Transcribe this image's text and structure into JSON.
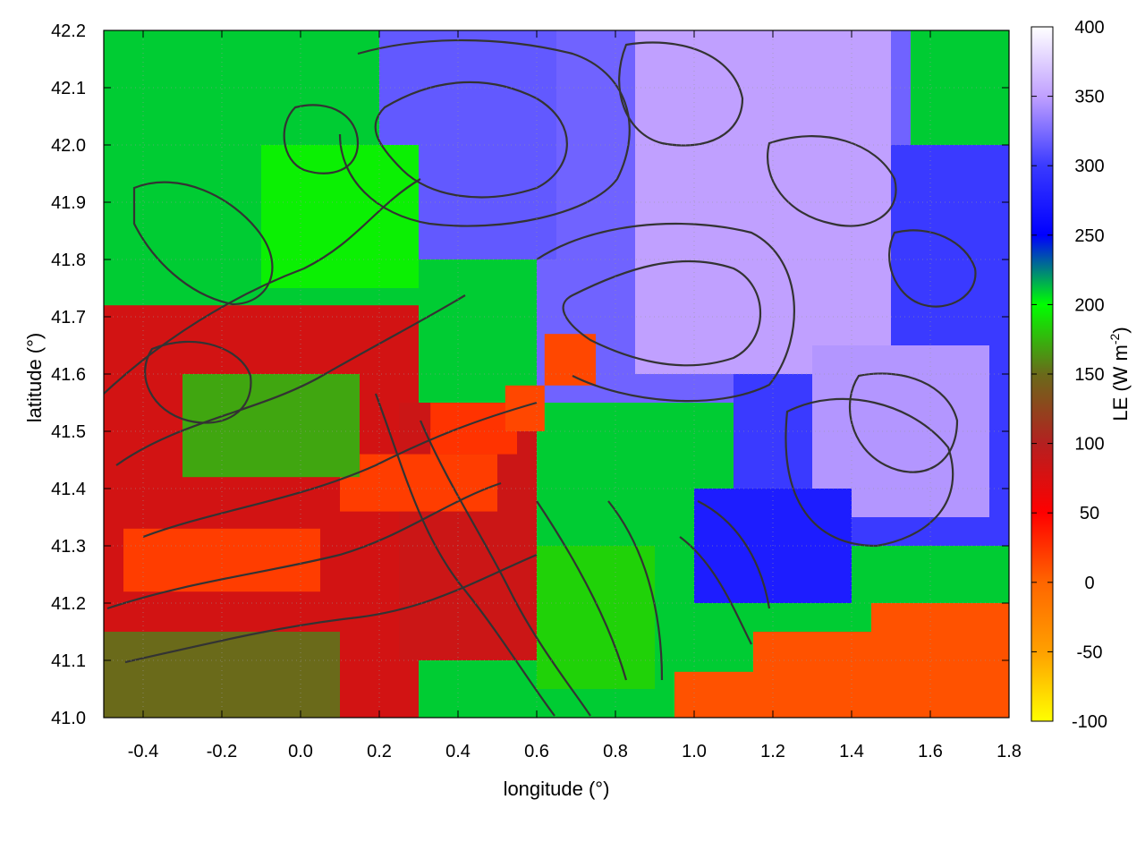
{
  "chart_data": {
    "type": "heatmap",
    "title": "",
    "xlabel": "longitude (°)",
    "ylabel": "latitude (°)",
    "colorbar_label": "LE (W m-2)",
    "colorbar_label_main": "LE (W m",
    "colorbar_label_sup": "-2",
    "colorbar_label_end": ")",
    "xlim": [
      -0.5,
      1.8
    ],
    "ylim": [
      41.0,
      42.2
    ],
    "clim": [
      -100,
      400
    ],
    "x_ticks": [
      -0.4,
      -0.2,
      0.0,
      0.2,
      0.4,
      0.6,
      0.8,
      1.0,
      1.2,
      1.4,
      1.6,
      1.8
    ],
    "x_tick_labels": [
      "-0.4",
      "-0.2",
      "0.0",
      "0.2",
      "0.4",
      "0.6",
      "0.8",
      "1.0",
      "1.2",
      "1.4",
      "1.6",
      "1.8"
    ],
    "y_ticks": [
      41.0,
      41.1,
      41.2,
      41.3,
      41.4,
      41.5,
      41.6,
      41.7,
      41.8,
      41.9,
      42.0,
      42.1,
      42.2
    ],
    "y_tick_labels": [
      "41.0",
      "41.1",
      "41.2",
      "41.3",
      "41.4",
      "41.5",
      "41.6",
      "41.7",
      "41.8",
      "41.9",
      "42.0",
      "42.1",
      "42.2"
    ],
    "colorbar_ticks": [
      -100,
      -50,
      0,
      50,
      100,
      150,
      200,
      250,
      300,
      350,
      400
    ],
    "colorbar_tick_labels": [
      "-100",
      "-50",
      "0",
      "50",
      "100",
      "150",
      "200",
      "250",
      "300",
      "350",
      "400"
    ],
    "colormap": [
      {
        "value": -100,
        "color": "#ffff00"
      },
      {
        "value": -50,
        "color": "#ffa000"
      },
      {
        "value": 0,
        "color": "#ff6600"
      },
      {
        "value": 50,
        "color": "#ff0000"
      },
      {
        "value": 100,
        "color": "#b42020"
      },
      {
        "value": 150,
        "color": "#6a6a1a"
      },
      {
        "value": 200,
        "color": "#00ff00"
      },
      {
        "value": 250,
        "color": "#0000ff"
      },
      {
        "value": 300,
        "color": "#3a3aff"
      },
      {
        "value": 350,
        "color": "#c0a0ff"
      },
      {
        "value": 400,
        "color": "#ffffff"
      }
    ],
    "grid": true,
    "contours": true,
    "regions": [
      {
        "lon": [
          -0.5,
          1.8
        ],
        "lat": [
          41.0,
          42.2
        ],
        "value": 210
      },
      {
        "lon": [
          0.6,
          1.55
        ],
        "lat": [
          41.55,
          42.2
        ],
        "value": 320
      },
      {
        "lon": [
          1.1,
          1.8
        ],
        "lat": [
          41.3,
          42.0
        ],
        "value": 300
      },
      {
        "lon": [
          0.2,
          0.65
        ],
        "lat": [
          41.8,
          42.2
        ],
        "value": 315
      },
      {
        "lon": [
          0.85,
          1.5
        ],
        "lat": [
          41.6,
          42.2
        ],
        "value": 350
      },
      {
        "lon": [
          1.3,
          1.75
        ],
        "lat": [
          41.35,
          41.65
        ],
        "value": 345
      },
      {
        "lon": [
          1.0,
          1.4
        ],
        "lat": [
          41.2,
          41.4
        ],
        "value": 275
      },
      {
        "lon": [
          -0.5,
          0.3
        ],
        "lat": [
          41.0,
          41.72
        ],
        "value": 80
      },
      {
        "lon": [
          0.25,
          0.6
        ],
        "lat": [
          41.1,
          41.55
        ],
        "value": 85
      },
      {
        "lon": [
          -0.45,
          0.05
        ],
        "lat": [
          41.22,
          41.33
        ],
        "value": 20
      },
      {
        "lon": [
          0.1,
          0.5
        ],
        "lat": [
          41.36,
          41.46
        ],
        "value": 20
      },
      {
        "lon": [
          0.33,
          0.55
        ],
        "lat": [
          41.46,
          41.55
        ],
        "value": 25
      },
      {
        "lon": [
          0.62,
          0.75
        ],
        "lat": [
          41.58,
          41.67
        ],
        "value": 15
      },
      {
        "lon": [
          0.52,
          0.62
        ],
        "lat": [
          41.5,
          41.58
        ],
        "value": 15
      },
      {
        "lon": [
          -0.5,
          0.1
        ],
        "lat": [
          41.0,
          41.15
        ],
        "value": 150
      },
      {
        "lon": [
          -0.3,
          0.15
        ],
        "lat": [
          41.42,
          41.6
        ],
        "value": 170
      },
      {
        "lon": [
          0.6,
          0.9
        ],
        "lat": [
          41.05,
          41.3
        ],
        "value": 185
      },
      {
        "lon": [
          -0.1,
          0.3
        ],
        "lat": [
          41.75,
          42.0
        ],
        "value": 195
      },
      {
        "lon": [
          0.95,
          1.8
        ],
        "lat": [
          41.0,
          41.08
        ],
        "value": 10
      },
      {
        "lon": [
          1.15,
          1.8
        ],
        "lat": [
          41.05,
          41.15
        ],
        "value": 10
      },
      {
        "lon": [
          1.45,
          1.8
        ],
        "lat": [
          41.12,
          41.2
        ],
        "value": 10
      }
    ]
  }
}
